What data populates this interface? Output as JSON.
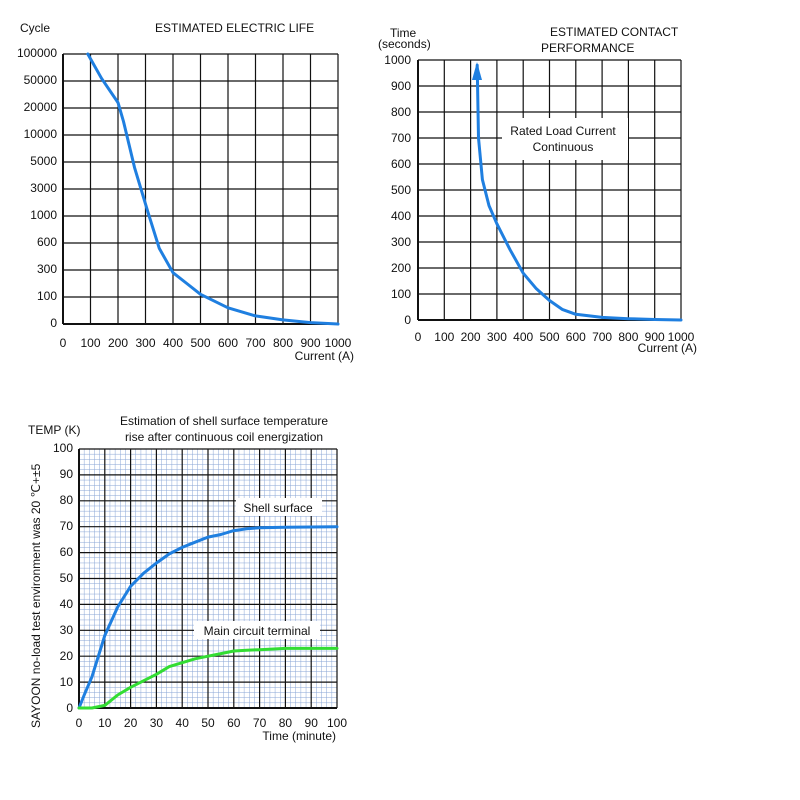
{
  "colors": {
    "blue": "#1f7fe0",
    "green": "#33dd33",
    "grid": "#111111",
    "fine_grid": "#8aa6d6"
  },
  "chart_data": [
    {
      "type": "line",
      "title": "ESTIMATED ELECTRIC LIFE",
      "ylabel": "Cycle",
      "xlabel": "Current (A)",
      "x_ticks": [
        "0",
        "100",
        "200",
        "300",
        "400",
        "500",
        "600",
        "700",
        "800",
        "900",
        "1000"
      ],
      "y_ticks": [
        "0",
        "100",
        "300",
        "600",
        "1000",
        "3000",
        "5000",
        "10000",
        "20000",
        "50000",
        "100000"
      ],
      "xlim": [
        0,
        1000
      ],
      "y_scale": "categorical (10 equal steps between listed tick values)",
      "series": [
        {
          "name": "Electric life",
          "color": "#1f7fe0",
          "x": [
            90,
            140,
            200,
            220,
            260,
            310,
            350,
            400,
            450,
            500,
            600,
            700,
            800,
            900,
            1000
          ],
          "y_index": [
            10,
            9.1,
            8.2,
            7.5,
            5.8,
            4.1,
            2.8,
            1.9,
            1.5,
            1.1,
            0.6,
            0.3,
            0.15,
            0.05,
            0
          ]
        }
      ]
    },
    {
      "type": "line",
      "title_lines": [
        "ESTIMATED CONTACT",
        "PERFORMANCE"
      ],
      "ylabel_lines": [
        "Time",
        "(seconds)"
      ],
      "xlabel": "Current (A)",
      "x_ticks": [
        "0",
        "100",
        "200",
        "300",
        "400",
        "500",
        "600",
        "700",
        "800",
        "900",
        "1000"
      ],
      "y_ticks": [
        "0",
        "100",
        "200",
        "300",
        "400",
        "500",
        "600",
        "700",
        "800",
        "900",
        "1000"
      ],
      "xlim": [
        0,
        1000
      ],
      "ylim": [
        0,
        1000
      ],
      "annotation_lines": [
        "Rated Load Current",
        "Continuous"
      ],
      "series": [
        {
          "name": "Rated Load Current Continuous",
          "color": "#1f7fe0",
          "x": [
            225,
            230,
            245,
            270,
            300,
            350,
            400,
            450,
            500,
            550,
            600,
            700,
            800,
            900,
            1000
          ],
          "y": [
            980,
            700,
            540,
            440,
            370,
            270,
            180,
            120,
            75,
            40,
            22,
            10,
            5,
            2,
            0
          ]
        }
      ]
    },
    {
      "type": "line",
      "title_lines": [
        "Estimation of shell surface temperature",
        "rise after continuous coil energization"
      ],
      "ylabel": "TEMP (K)",
      "side_note": "SAYOON no-load test environment was 20 ℃+±5",
      "xlabel": "Time (minute)",
      "x_ticks": [
        "0",
        "10",
        "20",
        "30",
        "40",
        "50",
        "60",
        "70",
        "80",
        "90",
        "100"
      ],
      "y_ticks": [
        "0",
        "10",
        "20",
        "30",
        "40",
        "50",
        "60",
        "70",
        "80",
        "90",
        "100"
      ],
      "xlim": [
        0,
        100
      ],
      "ylim": [
        0,
        100
      ],
      "series": [
        {
          "name": "Shell surface",
          "color": "#1f7fe0",
          "x": [
            0,
            2,
            5,
            10,
            15,
            20,
            25,
            30,
            35,
            40,
            45,
            50,
            55,
            60,
            65,
            70,
            80,
            90,
            100
          ],
          "y": [
            0,
            5,
            12,
            28,
            39,
            47,
            52,
            56,
            59.5,
            62,
            64,
            66,
            67,
            68.5,
            69.2,
            69.6,
            69.8,
            69.9,
            70
          ]
        },
        {
          "name": "Main circuit terminal",
          "color": "#33dd33",
          "x": [
            0,
            5,
            10,
            15,
            20,
            25,
            30,
            35,
            40,
            45,
            50,
            55,
            60,
            65,
            70,
            80,
            90,
            100
          ],
          "y": [
            0,
            0,
            1,
            5,
            8,
            10.5,
            13,
            16,
            17.5,
            19,
            20,
            21,
            22,
            22.3,
            22.5,
            23,
            23,
            23
          ]
        }
      ]
    }
  ]
}
